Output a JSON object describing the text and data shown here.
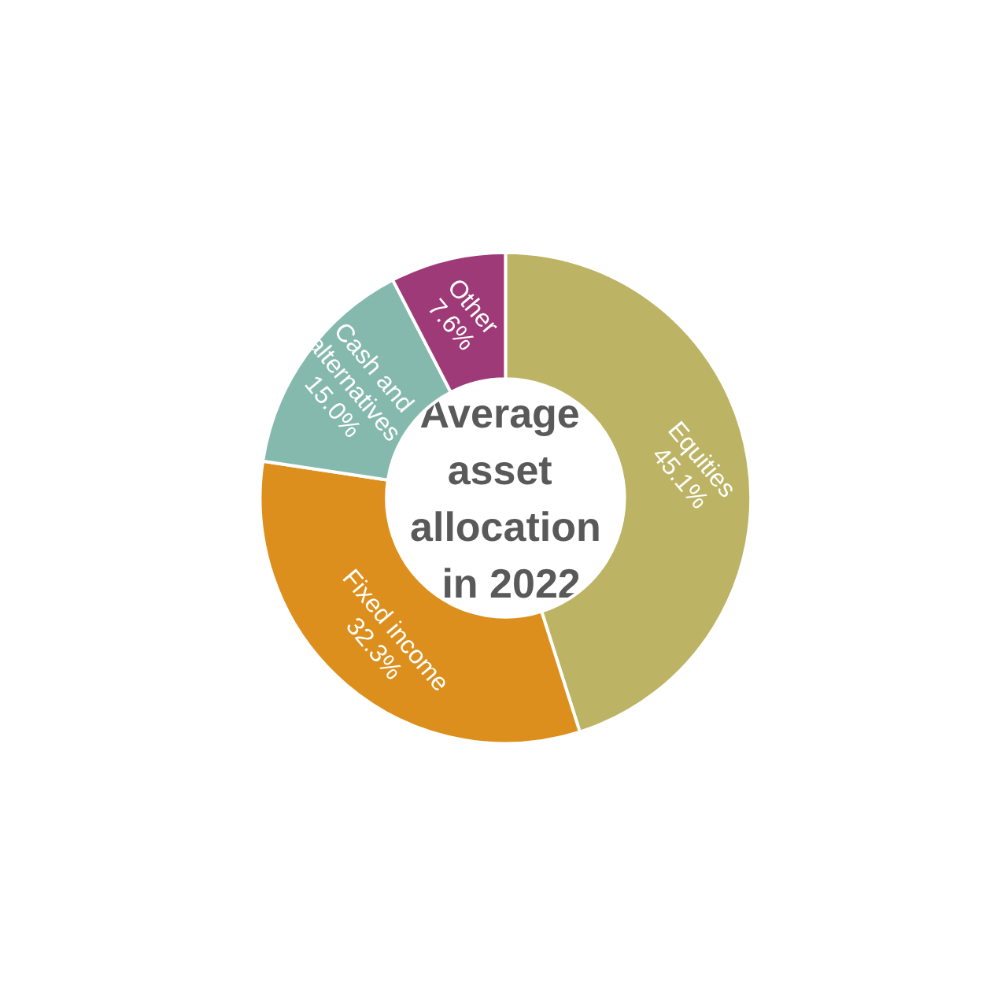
{
  "chart_data": {
    "type": "donut",
    "title": "Average asset allocation in 2022",
    "categories": [
      "Equities",
      "Fixed income",
      "Cash and alternatives",
      "Other"
    ],
    "values": [
      45.1,
      32.3,
      15.0,
      7.6
    ],
    "value_labels": [
      "45.1%",
      "32.3%",
      "15.0%",
      "7.6%"
    ],
    "colors": [
      "#bcb464",
      "#dc8f1c",
      "#85b9ae",
      "#9e3a78"
    ],
    "legend": false
  }
}
